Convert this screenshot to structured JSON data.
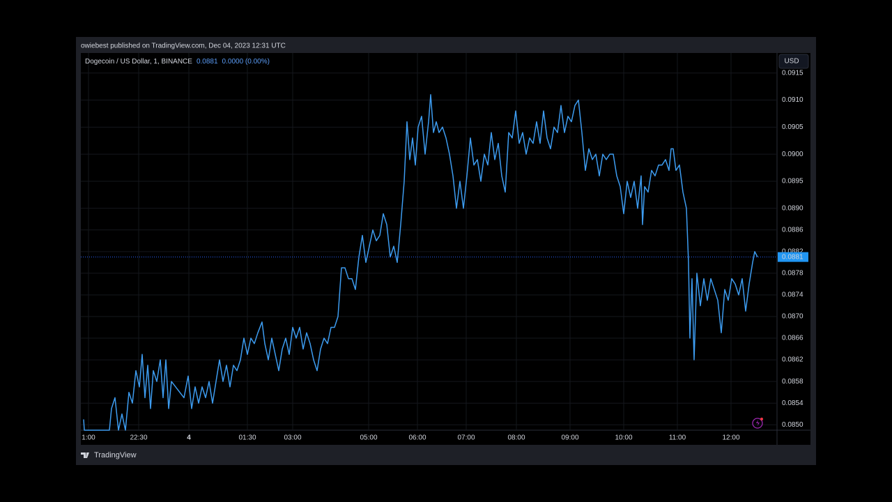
{
  "chart_data": {
    "type": "line",
    "publisher_note": "owiebest published on TradingView.com, Dec 04, 2023 12:31 UTC",
    "currency": "USD",
    "last_price": 0.0881,
    "change": "0.0000 (0.00%)",
    "brand": "TradingView",
    "xlim": [
      116,
      1115
    ],
    "xticks": [
      {
        "value": 127,
        "label": "1:00"
      },
      {
        "value": 199,
        "label": "22:30"
      },
      {
        "value": 271,
        "label": "4"
      },
      {
        "value": 355,
        "label": "01:30"
      },
      {
        "value": 420,
        "label": "03:00"
      },
      {
        "value": 529,
        "label": "05:00"
      },
      {
        "value": 599,
        "label": "06:00"
      },
      {
        "value": 669,
        "label": "07:00"
      },
      {
        "value": 741,
        "label": "08:00"
      },
      {
        "value": 818,
        "label": "09:00"
      },
      {
        "value": 895,
        "label": "10:00"
      },
      {
        "value": 972,
        "label": "11:00"
      },
      {
        "value": 1049,
        "label": "12:00"
      }
    ],
    "ylim": [
      0.0849,
      0.09187
    ],
    "yticks": [
      0.0915,
      {
        "value": 0.091,
        "label": "0.0910"
      },
      0.0905,
      {
        "value": 0.09,
        "label": "0.0900"
      },
      0.0895,
      {
        "value": 0.089,
        "label": "0.0890"
      },
      0.0886,
      0.0882,
      0.0878,
      0.0874,
      {
        "value": 0.087,
        "label": "0.0870"
      },
      0.0866,
      0.0862,
      0.0858,
      0.0854,
      {
        "value": 0.085,
        "label": "0.0850"
      }
    ],
    "grid": true,
    "x": [
      120,
      121,
      157,
      160,
      165,
      170,
      175,
      180,
      185,
      190,
      195,
      200,
      204,
      208,
      212,
      216,
      220,
      225,
      230,
      234,
      238,
      242,
      246,
      252,
      258,
      264,
      270,
      275,
      280,
      285,
      290,
      295,
      300,
      305,
      310,
      315,
      320,
      325,
      330,
      335,
      340,
      345,
      350,
      355,
      360,
      365,
      370,
      376,
      380,
      385,
      390,
      395,
      400,
      405,
      410,
      415,
      420,
      425,
      430,
      435,
      440,
      445,
      450,
      455,
      460,
      465,
      470,
      475,
      480,
      485,
      490,
      495,
      500,
      505,
      510,
      515,
      520,
      525,
      530,
      535,
      540,
      545,
      550,
      555,
      560,
      565,
      570,
      575,
      580,
      584,
      588,
      592,
      596,
      600,
      605,
      610,
      615,
      618,
      622,
      626,
      630,
      635,
      640,
      645,
      650,
      655,
      660,
      665,
      670,
      675,
      680,
      685,
      690,
      695,
      700,
      705,
      710,
      715,
      720,
      725,
      730,
      735,
      740,
      745,
      750,
      755,
      760,
      765,
      770,
      775,
      780,
      785,
      790,
      795,
      800,
      805,
      810,
      815,
      820,
      825,
      830,
      835,
      840,
      845,
      850,
      855,
      860,
      865,
      870,
      875,
      880,
      885,
      890,
      895,
      900,
      905,
      910,
      915,
      920,
      922,
      925,
      930,
      935,
      940,
      945,
      950,
      955,
      960,
      963,
      966,
      970,
      975,
      980,
      985,
      988,
      990,
      993,
      996,
      1000,
      1005,
      1010,
      1015,
      1020,
      1025,
      1030,
      1035,
      1040,
      1045,
      1050,
      1055,
      1060,
      1065,
      1070,
      1075,
      1080,
      1083,
      1087
    ],
    "series": [
      {
        "name": "Dogecoin / US Dollar, 1, BINANCE",
        "color": "#3d9cf0",
        "values": [
          0.0851,
          0.0849,
          0.0849,
          0.0853,
          0.0855,
          0.0849,
          0.0852,
          0.0849,
          0.0856,
          0.0854,
          0.086,
          0.0857,
          0.0863,
          0.0855,
          0.0861,
          0.0853,
          0.086,
          0.0858,
          0.0862,
          0.0855,
          0.0862,
          0.0853,
          0.0858,
          0.0857,
          0.0856,
          0.0855,
          0.0859,
          0.0853,
          0.0857,
          0.0854,
          0.0857,
          0.0855,
          0.0858,
          0.0854,
          0.0858,
          0.0862,
          0.0858,
          0.0861,
          0.0857,
          0.0861,
          0.086,
          0.0862,
          0.0866,
          0.0863,
          0.0866,
          0.0865,
          0.0867,
          0.0869,
          0.0865,
          0.0862,
          0.0866,
          0.0863,
          0.086,
          0.0864,
          0.0866,
          0.0863,
          0.0868,
          0.0866,
          0.0868,
          0.0864,
          0.0867,
          0.0865,
          0.0862,
          0.086,
          0.0864,
          0.0866,
          0.0865,
          0.0868,
          0.0868,
          0.087,
          0.0879,
          0.0879,
          0.0877,
          0.0877,
          0.0875,
          0.0881,
          0.0885,
          0.088,
          0.0883,
          0.0886,
          0.0884,
          0.0885,
          0.0889,
          0.0887,
          0.0881,
          0.0883,
          0.088,
          0.0887,
          0.0895,
          0.0906,
          0.0899,
          0.0903,
          0.0898,
          0.0905,
          0.0907,
          0.09,
          0.0906,
          0.0911,
          0.0904,
          0.0906,
          0.0904,
          0.0905,
          0.0903,
          0.09,
          0.0896,
          0.089,
          0.0895,
          0.089,
          0.0896,
          0.0903,
          0.0898,
          0.0899,
          0.0895,
          0.09,
          0.0898,
          0.0904,
          0.0899,
          0.0902,
          0.0896,
          0.0893,
          0.0904,
          0.0903,
          0.0908,
          0.0902,
          0.0904,
          0.09,
          0.0903,
          0.0902,
          0.0906,
          0.0902,
          0.0908,
          0.0903,
          0.0901,
          0.0905,
          0.0904,
          0.0909,
          0.0904,
          0.0907,
          0.0906,
          0.0909,
          0.091,
          0.0904,
          0.0897,
          0.0901,
          0.0899,
          0.09,
          0.0896,
          0.09,
          0.0899,
          0.09,
          0.09,
          0.0896,
          0.0894,
          0.0889,
          0.0895,
          0.0892,
          0.0895,
          0.089,
          0.0896,
          0.0887,
          0.0894,
          0.0893,
          0.0897,
          0.0896,
          0.0898,
          0.0898,
          0.0899,
          0.0897,
          0.0901,
          0.0901,
          0.0897,
          0.0898,
          0.0893,
          0.089,
          0.088,
          0.0866,
          0.0877,
          0.0862,
          0.0878,
          0.0872,
          0.0877,
          0.0873,
          0.0877,
          0.0875,
          0.0873,
          0.0867,
          0.0875,
          0.0873,
          0.0877,
          0.0876,
          0.0874,
          0.0877,
          0.0871,
          0.0876,
          0.088,
          0.0882,
          0.0881
        ]
      }
    ]
  }
}
